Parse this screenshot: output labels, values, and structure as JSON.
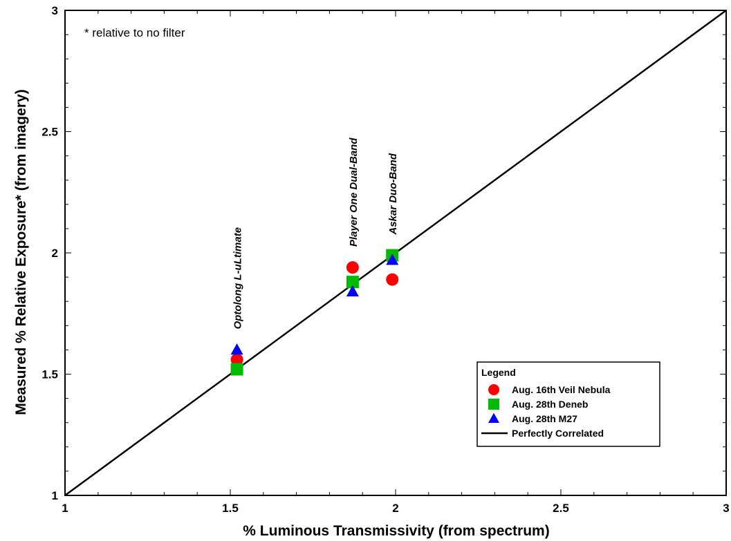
{
  "chart_data": {
    "type": "scatter",
    "xlabel": "% Luminous Transmissivity (from spectrum)",
    "ylabel": "Measured % Relative Exposure* (from imagery)",
    "xlim": [
      1,
      3
    ],
    "ylim": [
      1,
      3
    ],
    "x_ticks": [
      "1",
      "1.5",
      "2",
      "2.5",
      "3"
    ],
    "y_ticks": [
      "1",
      "1.5",
      "2",
      "2.5",
      "3"
    ],
    "grid": false,
    "note": "* relative to no filter",
    "legend": {
      "title": "Legend",
      "placement": "bottom-right"
    },
    "series": [
      {
        "name": "Aug. 16th Veil Nebula",
        "marker": "circle",
        "color": "#ff0000",
        "points": [
          {
            "x": 1.52,
            "y": 1.56
          },
          {
            "x": 1.87,
            "y": 1.94
          },
          {
            "x": 1.99,
            "y": 1.89
          }
        ]
      },
      {
        "name": "Aug. 28th Deneb",
        "marker": "square",
        "color": "#00bb00",
        "points": [
          {
            "x": 1.52,
            "y": 1.52
          },
          {
            "x": 1.87,
            "y": 1.88
          },
          {
            "x": 1.99,
            "y": 1.99
          }
        ]
      },
      {
        "name": "Aug. 28th M27",
        "marker": "triangle",
        "color": "#0000ff",
        "points": [
          {
            "x": 1.52,
            "y": 1.6
          },
          {
            "x": 1.87,
            "y": 1.84
          },
          {
            "x": 1.99,
            "y": 1.97
          }
        ]
      },
      {
        "name": "Perfectly Correlated",
        "marker": "line",
        "color": "#000000",
        "points": [
          {
            "x": 1,
            "y": 1
          },
          {
            "x": 3,
            "y": 3
          }
        ]
      }
    ],
    "annotations": [
      {
        "text": "Optolong L-uLtimate",
        "x": 1.52,
        "y": 1.6
      },
      {
        "text": "Player One Dual-Band",
        "x": 1.87,
        "y": 1.94
      },
      {
        "text": "Askar Duo-Band",
        "x": 1.99,
        "y": 1.99
      }
    ]
  }
}
